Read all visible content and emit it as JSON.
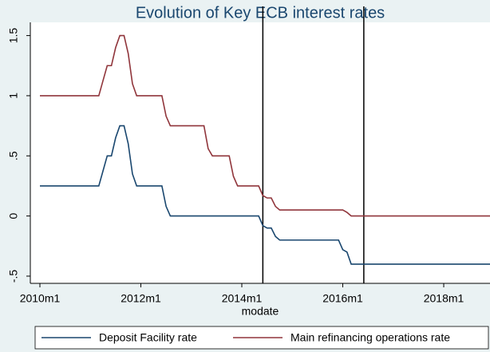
{
  "chart_data": {
    "type": "line",
    "title": "Evolution of Key ECB interest rates",
    "x_label": "modate",
    "xlim": [
      "2010m1",
      "2018m12"
    ],
    "xticks": [
      "2010m1",
      "2012m1",
      "2014m1",
      "2016m1",
      "2018m1"
    ],
    "ylim": [
      -0.56,
      1.61
    ],
    "yticks": [
      1.5,
      1,
      {
        "value": 0.5,
        "label": ".5"
      },
      0,
      {
        "value": -0.5,
        "label": "-.5"
      }
    ],
    "vlines": [
      "2014m6",
      "2016m6"
    ],
    "legend": "bottom",
    "series": [
      {
        "name": "Deposit Facility rate",
        "color": "#1a476f",
        "x": [
          "2010m1",
          "2011m3",
          "2011m4",
          "2011m5",
          "2011m6",
          "2011m7",
          "2011m8",
          "2011m9",
          "2011m10",
          "2011m11",
          "2011m12",
          "2012m6",
          "2012m7",
          "2012m8",
          "2014m5",
          "2014m6",
          "2014m7",
          "2014m8",
          "2014m9",
          "2014m10",
          "2015m12",
          "2016m1",
          "2016m2",
          "2016m3",
          "2018m12"
        ],
        "values": [
          0.25,
          0.25,
          0.375,
          0.5,
          0.5,
          0.65,
          0.75,
          0.75,
          0.6,
          0.35,
          0.25,
          0.25,
          0.08,
          0,
          0,
          -0.08,
          -0.1,
          -0.1,
          -0.17,
          -0.2,
          -0.2,
          -0.28,
          -0.3,
          -0.4,
          -0.4
        ]
      },
      {
        "name": "Main refinancing operations rate",
        "color": "#90353b",
        "x": [
          "2010m1",
          "2011m3",
          "2011m4",
          "2011m5",
          "2011m6",
          "2011m7",
          "2011m8",
          "2011m9",
          "2011m10",
          "2011m11",
          "2011m12",
          "2012m6",
          "2012m7",
          "2012m8",
          "2013m4",
          "2013m5",
          "2013m6",
          "2013m10",
          "2013m11",
          "2013m12",
          "2014m5",
          "2014m6",
          "2014m7",
          "2014m8",
          "2014m9",
          "2014m10",
          "2016m1",
          "2016m2",
          "2016m3",
          "2018m12"
        ],
        "values": [
          1,
          1,
          1.125,
          1.25,
          1.25,
          1.4,
          1.5,
          1.5,
          1.35,
          1.1,
          1,
          1,
          0.83,
          0.75,
          0.75,
          0.56,
          0.5,
          0.5,
          0.33,
          0.25,
          0.25,
          0.17,
          0.15,
          0.15,
          0.08,
          0.05,
          0.05,
          0.03,
          0,
          0
        ]
      }
    ]
  }
}
